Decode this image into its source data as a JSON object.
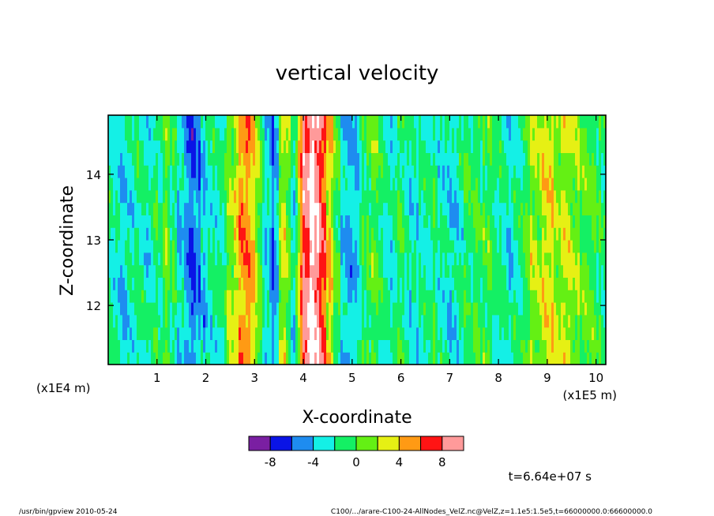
{
  "chart_data": {
    "type": "heatmap",
    "title": "vertical velocity",
    "xlabel": "X-coordinate",
    "ylabel": "Z-coordinate",
    "x_ticks": [
      "1",
      "2",
      "3",
      "4",
      "5",
      "6",
      "7",
      "8",
      "9",
      "10"
    ],
    "y_ticks": [
      "12",
      "13",
      "14"
    ],
    "x_multiplier_left": "(x1E4 m)",
    "x_multiplier_right": "(x1E5 m)",
    "xlim": [
      0,
      10.2
    ],
    "ylim": [
      11.1,
      14.9
    ],
    "colorbar": {
      "colors": [
        "#7a1fa2",
        "#0a14e6",
        "#1e8cf0",
        "#14f0e6",
        "#14f064",
        "#64f014",
        "#e6f014",
        "#ff9a14",
        "#ff1414",
        "#ff9a9a"
      ],
      "tick_labels": [
        "-8",
        "-4",
        "0",
        "4",
        "8"
      ],
      "bin_edges": [
        -10,
        -8,
        -6,
        -4,
        -2,
        0,
        2,
        4,
        6,
        8,
        10
      ]
    },
    "field_profile_x": [
      0.0,
      0.3,
      0.6,
      0.9,
      1.2,
      1.5,
      1.75,
      2.0,
      2.3,
      2.6,
      2.8,
      3.0,
      3.2,
      3.4,
      3.6,
      3.8,
      4.0,
      4.2,
      4.4,
      4.6,
      4.8,
      5.0,
      5.2,
      5.4,
      5.6,
      5.8,
      6.0,
      6.3,
      6.6,
      7.0,
      7.4,
      7.8,
      8.2,
      8.6,
      9.0,
      9.4,
      9.8,
      10.2
    ],
    "field_profile_value": [
      -1,
      -3,
      -2,
      -2,
      0,
      -3,
      -6,
      -3,
      -2,
      3,
      6,
      4,
      -2,
      -6,
      4,
      -4,
      8,
      11,
      6,
      2,
      -3,
      -5,
      -1,
      0,
      -1,
      -2,
      -1,
      -3,
      -1,
      -3,
      -1,
      0,
      -3,
      1,
      3,
      2,
      0,
      -1
    ],
    "annotation_time": "t=6.64e+07 s",
    "footer_left": "/usr/bin/gpview  2010-05-24",
    "footer_right": "C100/.../arare-C100-24-AllNodes_VelZ.nc@VelZ,z=1.1e5:1.5e5,t=66000000.0:66600000.0"
  }
}
